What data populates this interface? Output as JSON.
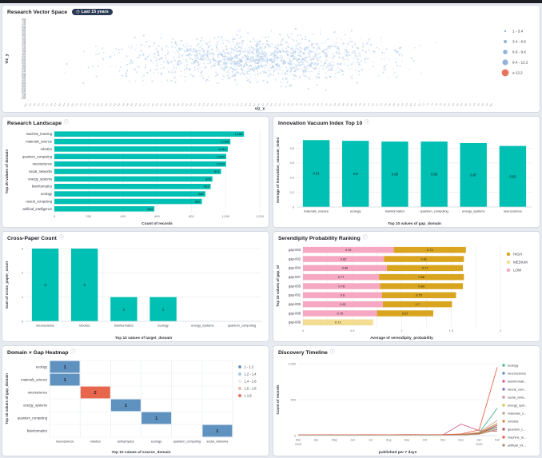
{
  "icons": {
    "info": "ⓘ",
    "clock": "◷"
  },
  "theme": {
    "page_bg": "#e7eaef",
    "top_bar": "#1d1e24",
    "panel_border": "#d3dae6",
    "panel_bg": "#ffffff",
    "teal": "#00BFB3",
    "badge_bg": "#2b3a55"
  },
  "panels": {
    "vector_space": {
      "title": "Research Vector Space",
      "time_badge": "Last 15 years",
      "chart_data": {
        "type": "scatter",
        "xlabel": "viz_x",
        "ylabel": "viz_y",
        "x_axis_range": [
          -10,
          10
        ],
        "y_axis_range": [
          -8,
          8
        ],
        "point_count": 1600,
        "seed": 7,
        "point_color": "#aecbea",
        "legend_items": [
          {
            "label": "1 - 3.4",
            "radius": 1.2,
            "color": "#86abd4"
          },
          {
            "label": "3.4 - 6.6",
            "radius": 2,
            "color": "#86abd4"
          },
          {
            "label": "6.6 - 9.4",
            "radius": 2.8,
            "color": "#86abd4"
          },
          {
            "label": "9.4 - 12.2",
            "radius": 3.6,
            "color": "#86abd4"
          },
          {
            "label": "≥ 12.2",
            "radius": 4.4,
            "color": "#e7664c"
          }
        ]
      }
    },
    "research_landscape": {
      "title": "Research Landscape",
      "chart_data": {
        "type": "bar",
        "orientation": "horizontal",
        "categories": [
          "machine_learning",
          "materials_science",
          "robotics",
          "quantum_computing",
          "neuroscience",
          "social_networks",
          "energy_systems",
          "bioinformatics",
          "ecology",
          "neural_computing",
          "artificial_intelligence"
        ],
        "values": [
          1108,
          1028,
          1013,
          1004,
          1003,
          974,
          923,
          913,
          882,
          862,
          584
        ],
        "bar_color": "#00BFB3",
        "xlabel": "Count of records",
        "ylabel": "Top 20 values of domain",
        "xlim": [
          0,
          1200
        ],
        "x_ticks": [
          0,
          200,
          400,
          600,
          800,
          1000,
          1200
        ]
      }
    },
    "innovation_vacuum": {
      "title": "Innovation Vacuum Index Top 10",
      "chart_data": {
        "type": "bar",
        "orientation": "vertical",
        "categories": [
          "materials_science",
          "ecology",
          "bioinformatics",
          "quantum_computing",
          "energy_systems",
          "neuroscience"
        ],
        "values": [
          0.91,
          0.9,
          0.89,
          0.89,
          0.87,
          0.83
        ],
        "bar_color": "#00BFB3",
        "xlabel": "Top 10 values of gap_domain",
        "ylabel": "Average of innovation_vacuum_index",
        "ylim": [
          0,
          1
        ],
        "y_ticks": [
          0,
          0.2,
          0.4,
          0.6,
          0.8
        ]
      }
    },
    "cross_paper": {
      "title": "Cross-Paper Count",
      "chart_data": {
        "type": "bar",
        "orientation": "vertical",
        "categories": [
          "neuroscience",
          "robotics",
          "bioinformatics",
          "ecology",
          "energy_systems",
          "quantum_computing"
        ],
        "values": [
          3,
          3,
          1,
          1,
          0,
          0
        ],
        "bar_color": "#00BFB3",
        "xlabel": "Top 10 values of target_domain",
        "ylabel": "Sum of cross_paper_count",
        "ylim": [
          0,
          3
        ],
        "y_ticks": [
          0,
          1,
          2,
          3
        ]
      }
    },
    "serendipity": {
      "title": "Serendipity Probability Ranking",
      "chart_data": {
        "type": "bar",
        "orientation": "horizontal",
        "stacked": true,
        "xlabel": "Average of serendipity_probability",
        "ylabel": "Top 10 values of gap_id",
        "xlim": [
          0,
          2
        ],
        "x_ticks": [
          0,
          0.5,
          1,
          1.5,
          2
        ],
        "levels": {
          "HIGH": "#d9a41e",
          "MEDIUM": "#f3dd92",
          "LOW": "#f6a8c2"
        },
        "legend": [
          "HIGH",
          "MEDIUM",
          "LOW"
        ],
        "rows": [
          {
            "label": "gap-003",
            "segments": [
              {
                "level": "LOW",
                "value": 0.92
              },
              {
                "level": "HIGH",
                "value": 0.73
              }
            ]
          },
          {
            "label": "gap-002",
            "segments": [
              {
                "level": "LOW",
                "value": 0.82
              },
              {
                "level": "HIGH",
                "value": 0.81
              }
            ]
          },
          {
            "label": "gap-004",
            "segments": [
              {
                "level": "LOW",
                "value": 0.85
              },
              {
                "level": "HIGH",
                "value": 0.77
              }
            ]
          },
          {
            "label": "gap-007",
            "segments": [
              {
                "level": "LOW",
                "value": 0.77
              },
              {
                "level": "HIGH",
                "value": 0.86
              }
            ]
          },
          {
            "label": "gap-005",
            "segments": [
              {
                "level": "LOW",
                "value": 0.78
              },
              {
                "level": "HIGH",
                "value": 0.84
              }
            ]
          },
          {
            "label": "gap-001",
            "segments": [
              {
                "level": "LOW",
                "value": 0.8
              },
              {
                "level": "HIGH",
                "value": 0.75
              }
            ]
          },
          {
            "label": "gap-009",
            "segments": [
              {
                "level": "LOW",
                "value": 0.81
              },
              {
                "level": "HIGH",
                "value": 0.7
              }
            ]
          },
          {
            "label": "gap-008",
            "segments": [
              {
                "level": "LOW",
                "value": 0.75
              },
              {
                "level": "HIGH",
                "value": 0.57
              }
            ]
          },
          {
            "label": "gap-006",
            "segments": [
              {
                "level": "MEDIUM",
                "value": 0.71
              }
            ]
          }
        ]
      }
    },
    "heatmap": {
      "title": "Domain × Gap Heatmap",
      "chart_data": {
        "type": "heatmap",
        "xlabel": "Top 10 values of source_domain",
        "ylabel": "Top 10 values of gap_domain",
        "x_categories": [
          "neuroscience",
          "robotics",
          "astrophysics",
          "ecology",
          "quantum_computing",
          "social_networks"
        ],
        "y_categories": [
          "ecology",
          "materials_science",
          "neuroscience",
          "energy_systems",
          "quantum_computing",
          "bioinformatics"
        ],
        "cells": [
          {
            "x": "neuroscience",
            "y": "ecology",
            "value": 1,
            "color": "#6092c0"
          },
          {
            "x": "neuroscience",
            "y": "materials_science",
            "value": 1,
            "color": "#6092c0"
          },
          {
            "x": "robotics",
            "y": "neuroscience",
            "value": 2,
            "color": "#e7664c"
          },
          {
            "x": "astrophysics",
            "y": "energy_systems",
            "value": 1,
            "color": "#6092c0"
          },
          {
            "x": "ecology",
            "y": "quantum_computing",
            "value": 1,
            "color": "#6092c0"
          },
          {
            "x": "social_networks",
            "y": "bioinformatics",
            "value": 1,
            "color": "#6092c0"
          }
        ],
        "legend_items": [
          {
            "label": "1 - 1.2",
            "color": "#6092c0"
          },
          {
            "label": "1.2 - 1.4",
            "color": "#a6c2de"
          },
          {
            "label": "1.4 - 1.6",
            "color": "#edeff3"
          },
          {
            "label": "1.6 - 1.8",
            "color": "#efb7a4"
          },
          {
            "label": "≥ 1.8",
            "color": "#e7664c"
          }
        ]
      }
    },
    "timeline": {
      "title": "Discovery Timeline",
      "chart_data": {
        "type": "line",
        "xlabel": "published per 7 days",
        "ylabel": "Count of records",
        "x": [
          "Mar",
          "Apr",
          "May",
          "Jun",
          "Jul",
          "Aug",
          "Sep",
          "Oct",
          "Nov",
          "Dec",
          "Jan",
          "Feb"
        ],
        "year_marks": [
          {
            "label": "2019",
            "index": 0
          },
          {
            "label": "2020",
            "index": 10
          }
        ],
        "ylim": [
          0,
          1000
        ],
        "y_ticks": [
          0,
          500,
          1000
        ],
        "series": [
          {
            "label": "ecology",
            "color": "#54b399",
            "values": [
              6,
              7,
              6,
              8,
              7,
              9,
              8,
              10,
              9,
              12,
              40,
              380
            ]
          },
          {
            "label": "neuroscience",
            "color": "#6092c0",
            "values": [
              8,
              7,
              9,
              8,
              10,
              9,
              11,
              10,
              12,
              14,
              30,
              120
            ]
          },
          {
            "label": "bioinformati...",
            "color": "#d36086",
            "values": [
              5,
              6,
              7,
              6,
              8,
              7,
              9,
              8,
              10,
              160,
              70,
              60
            ]
          },
          {
            "label": "neural_com...",
            "color": "#9170b8",
            "values": [
              4,
              5,
              4,
              6,
              5,
              7,
              6,
              8,
              7,
              10,
              22,
              90
            ]
          },
          {
            "label": "social_netw...",
            "color": "#ca8eae",
            "values": [
              7,
              8,
              7,
              9,
              8,
              10,
              9,
              11,
              10,
              13,
              35,
              150
            ]
          },
          {
            "label": "energy_syst...",
            "color": "#d6bf57",
            "values": [
              5,
              6,
              5,
              7,
              6,
              8,
              7,
              9,
              8,
              11,
              25,
              110
            ]
          },
          {
            "label": "materials_s...",
            "color": "#b9a888",
            "values": [
              8,
              9,
              8,
              10,
              9,
              11,
              10,
              12,
              11,
              15,
              45,
              210
            ]
          },
          {
            "label": "robotics",
            "color": "#da8b45",
            "values": [
              6,
              7,
              8,
              7,
              9,
              8,
              10,
              9,
              11,
              14,
              38,
              170
            ]
          },
          {
            "label": "quantum_c...",
            "color": "#aa6556",
            "values": [
              5,
              6,
              7,
              8,
              7,
              9,
              8,
              10,
              9,
              12,
              28,
              140
            ]
          },
          {
            "label": "machine_le...",
            "color": "#e7664c",
            "values": [
              10,
              11,
              12,
              11,
              13,
              12,
              14,
              13,
              15,
              22,
              80,
              950
            ]
          },
          {
            "label": "artificial_int...",
            "color": "#b0916f",
            "values": [
              4,
              5,
              4,
              6,
              5,
              7,
              6,
              8,
              7,
              9,
              20,
              85
            ]
          }
        ]
      }
    }
  }
}
